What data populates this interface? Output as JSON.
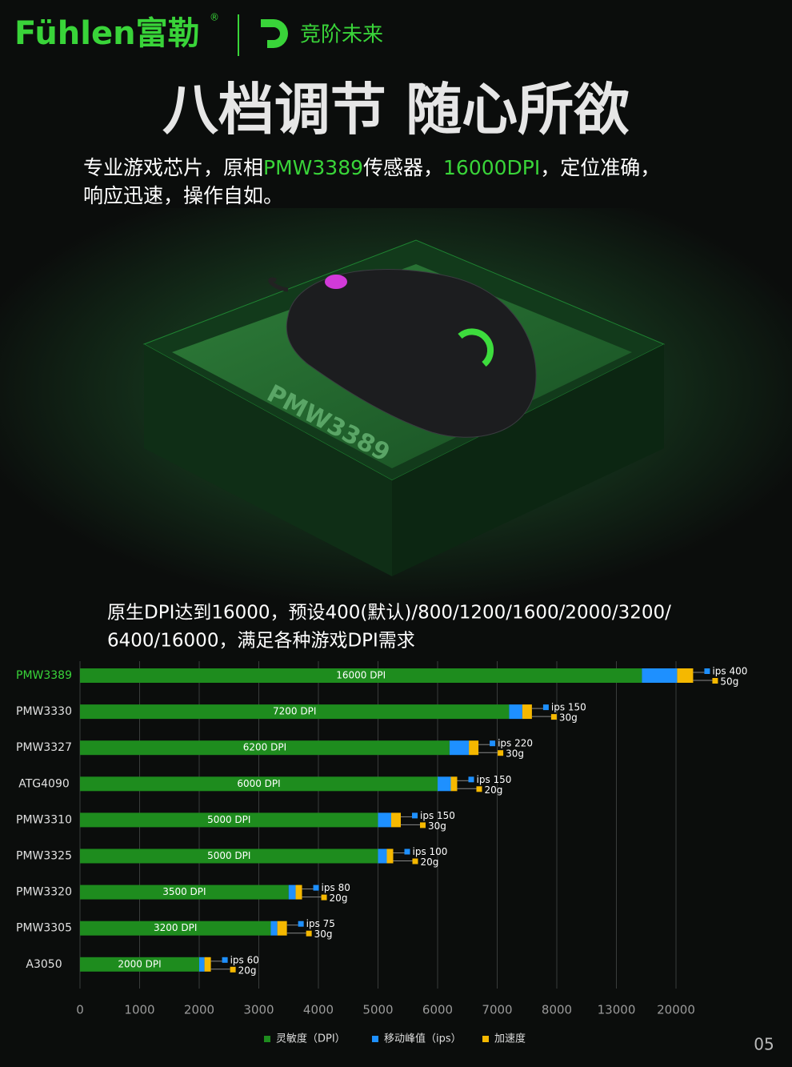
{
  "header": {
    "brand": "Fühlen富勒",
    "registered": "®",
    "slogan": "竞阶未来"
  },
  "title": "八档调节 随心所欲",
  "intro": {
    "line1": [
      {
        "text": "专业游戏芯片，原相",
        "green": false
      },
      {
        "text": "PMW3389",
        "green": true
      },
      {
        "text": "传感器，",
        "green": false
      },
      {
        "text": "16000DPI",
        "green": true
      },
      {
        "text": "，定位准确，",
        "green": false
      }
    ],
    "line2": "响应迅速，操作自如。"
  },
  "chip_label": "PMW3389",
  "page_number": "05",
  "chart_data": {
    "type": "bar",
    "orientation": "horizontal",
    "subtitle": [
      "原生DPI达到16000，预设400(默认)/800/1200/1600/2000/3200/",
      "6400/16000，满足各种游戏DPI需求"
    ],
    "categories": [
      "PMW3389",
      "PMW3330",
      "PMW3327",
      "ATG4090",
      "PMW3310",
      "PMW3325",
      "PMW3320",
      "PMW3305",
      "A3050"
    ],
    "highlight": "PMW3389",
    "series": [
      {
        "name": "灵敏度（DPI）",
        "color": "#1e8c1e",
        "values": [
          16000,
          7200,
          6200,
          6000,
          5000,
          5000,
          3500,
          3200,
          2000
        ],
        "value_labels": [
          "16000 DPI",
          "7200 DPI",
          "6200 DPI",
          "6000 DPI",
          "5000 DPI",
          "5000 DPI",
          "3500 DPI",
          "3200 DPI",
          "2000 DPI"
        ]
      },
      {
        "name": "移动峰值（ips）",
        "color": "#1e90ff",
        "values": [
          400,
          150,
          220,
          150,
          150,
          100,
          80,
          75,
          60
        ],
        "value_labels": [
          "ips 400",
          "ips 150",
          "ips 220",
          "ips 150",
          "ips 150",
          "ips 100",
          "ips 80",
          "ips 75",
          "ips 60"
        ]
      },
      {
        "name": "加速度",
        "color": "#f5b800",
        "values": [
          50,
          30,
          30,
          20,
          30,
          20,
          20,
          30,
          20
        ],
        "value_labels": [
          "50g",
          "30g",
          "30g",
          "20g",
          "30g",
          "20g",
          "20g",
          "30g",
          "20g"
        ]
      }
    ],
    "xlim": [
      0,
      20000
    ],
    "xticks": [
      0,
      1000,
      2000,
      3000,
      4000,
      5000,
      6000,
      7000,
      8000,
      13000,
      20000
    ],
    "grid": true
  }
}
